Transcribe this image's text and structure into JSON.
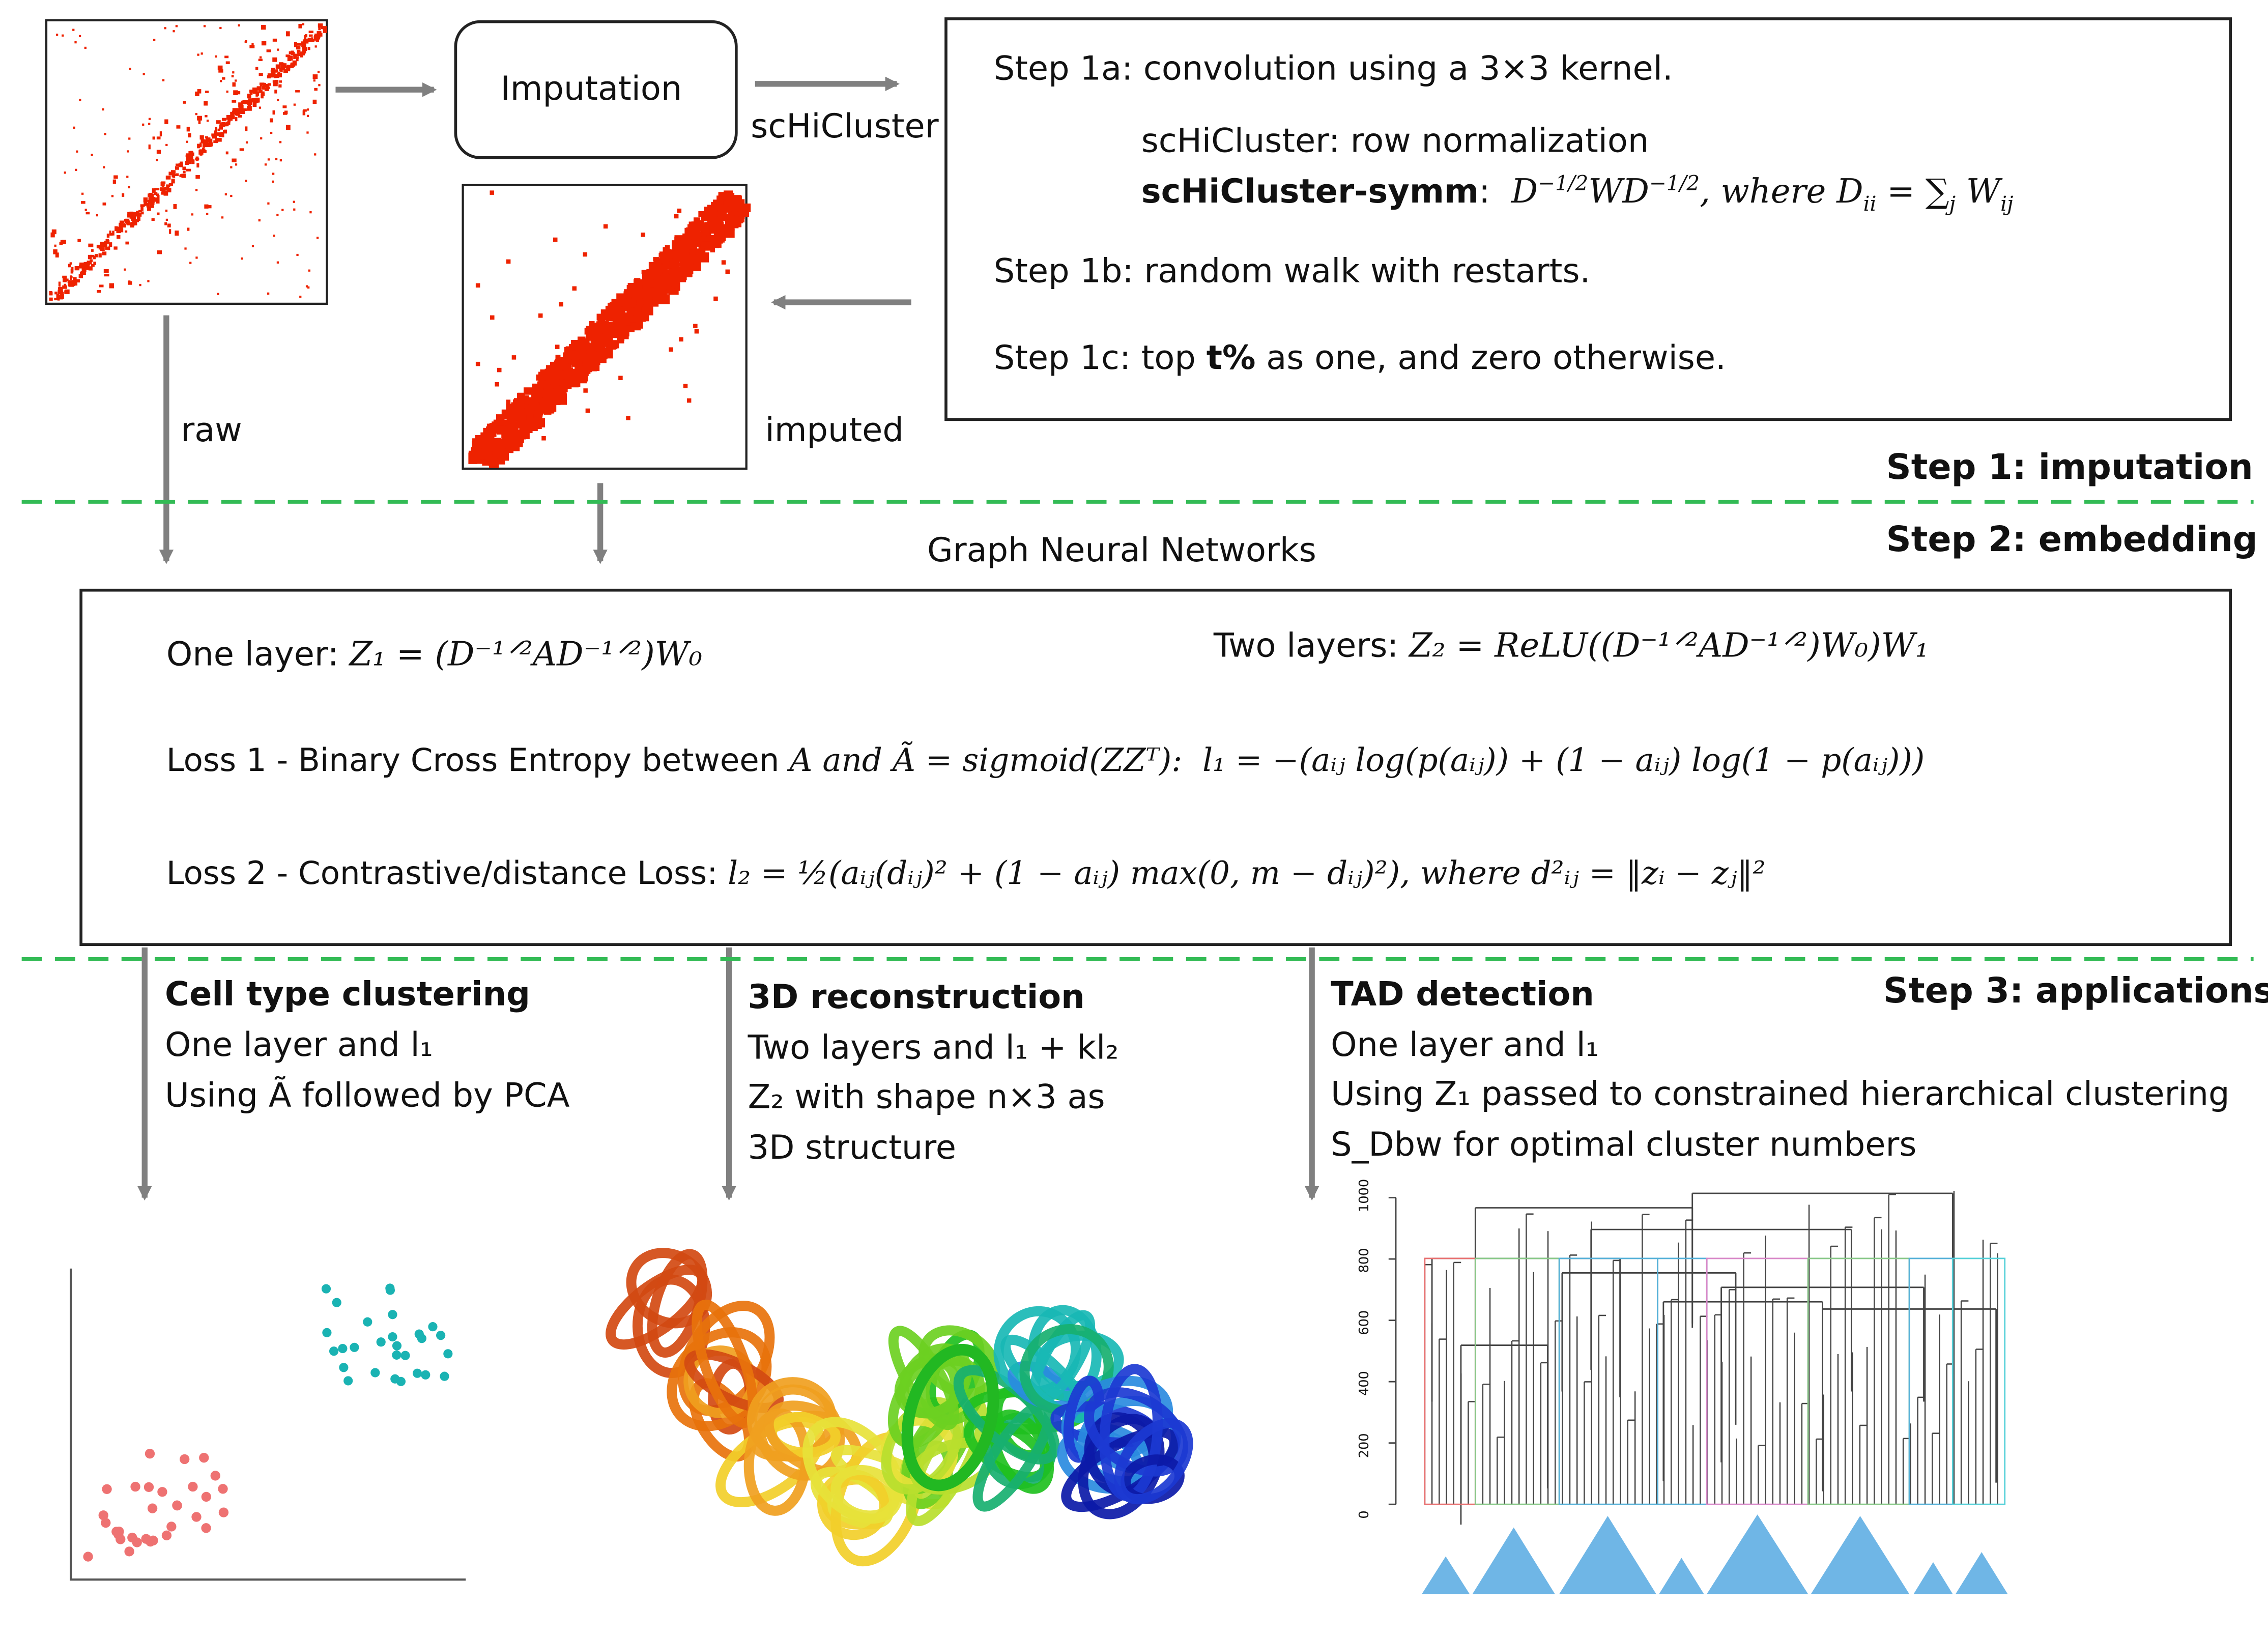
{
  "top": {
    "imputation_label": "Imputation",
    "schicluster_label": "scHiCluster",
    "raw_label": "raw",
    "imputed_label": "imputed"
  },
  "step1_box": {
    "line1": "Step 1a: convolution using a 3×3 kernel.",
    "norm1": "scHiCluster: row normalization",
    "norm2_name": "scHiCluster-symm",
    "norm2_colon": ":",
    "norm2_formula_a": "D",
    "norm2_formula_sup1": "−1/2",
    "norm2_formula_b": "WD",
    "norm2_formula_sup2": "−1/2",
    "norm2_formula_c": ", where D",
    "norm2_formula_sub1": "ii",
    "norm2_formula_d": " = ∑",
    "norm2_formula_sub2": "j",
    "norm2_formula_e": " W",
    "norm2_formula_sub3": "ij",
    "line3": "Step 1b: random walk with restarts.",
    "line4_pre": "Step 1c: top ",
    "line4_bold": "t%",
    "line4_post": " as one, and zero otherwise."
  },
  "sections": {
    "step1": "Step 1: imputation",
    "step2": "Step 2: embedding",
    "step3": "Step 3: applications",
    "gnn": "Graph Neural Networks"
  },
  "gnn_box": {
    "one_layer_label": "One layer: ",
    "one_layer_formula": "Z₁ = (D⁻¹ᐟ²AD⁻¹ᐟ²)W₀",
    "two_layer_label": "Two layers: ",
    "two_layer_formula": "Z₂ = ReLU((D⁻¹ᐟ²AD⁻¹ᐟ²)W₀)W₁",
    "loss1_label": "Loss 1 - Binary Cross Entropy between ",
    "loss1_formula_a": "A and Ã = sigmoid(ZZᵀ):",
    "loss1_formula_b": "l₁ = −(aᵢⱼ log(p(aᵢⱼ)) + (1 − aᵢⱼ) log(1 − p(aᵢⱼ)))",
    "loss2_label": "Loss 2 - Contrastive/distance Loss: ",
    "loss2_formula": "l₂ = ½(aᵢⱼ(dᵢⱼ)² + (1 − aᵢⱼ) max(0, m − dᵢⱼ)²), where d²ᵢⱼ = ‖zᵢ − zⱼ‖²"
  },
  "apps": {
    "clustering": {
      "title": "Cell type clustering",
      "line1": "One layer and l₁",
      "line2": "Using Ã followed by PCA"
    },
    "reconstruction": {
      "title": "3D reconstruction",
      "line1": "Two layers and l₁ + kl₂",
      "line2": "Z₂ with shape n×3 as",
      "line3": "3D structure"
    },
    "tad": {
      "title": "TAD detection",
      "line1": "One layer and l₁",
      "line2": "Using Z₁ passed to constrained hierarchical clustering",
      "line3": "S_Dbw for optimal cluster numbers"
    }
  },
  "dendrogram": {
    "y_ticks": [
      "0",
      "200",
      "400",
      "600",
      "800",
      "1000"
    ]
  },
  "colors": {
    "heatmap_red": "#ee2200",
    "arrow_gray": "#808080",
    "dash_green": "#33bb55",
    "scatter_cyan": "#1ab3b3",
    "scatter_salmon": "#ee7272",
    "tad_blue": "#6fb6e6"
  }
}
